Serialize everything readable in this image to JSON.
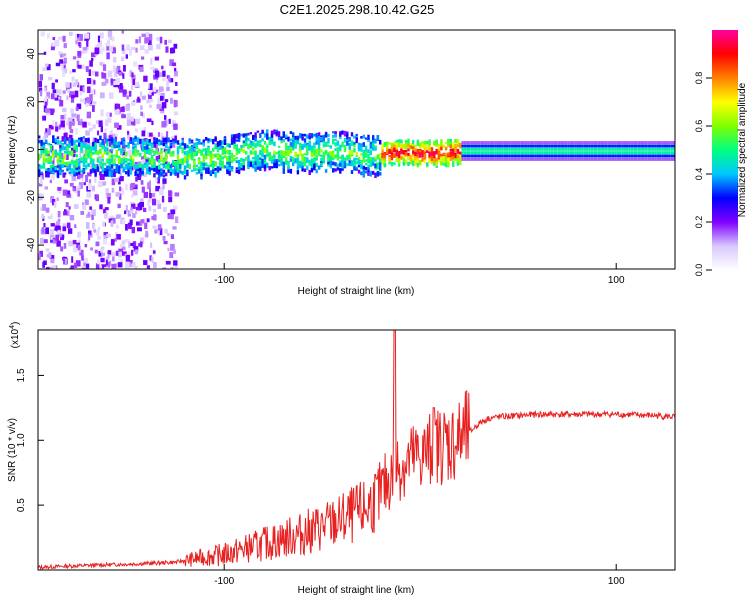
{
  "chart_data": [
    {
      "type": "heatmap",
      "title": "C2E1.2025.298.10.42.G25",
      "xlabel": "Height of straight line (km)",
      "ylabel": "Frequency (Hz)",
      "xlim": [
        -195,
        130
      ],
      "ylim": [
        -50,
        50
      ],
      "x_ticks": [
        -100,
        100
      ],
      "y_ticks": [
        -40,
        -20,
        0,
        20,
        40
      ],
      "colorbar": {
        "label": "Normalized spectral amplitude",
        "range": [
          0,
          1
        ],
        "ticks": [
          "0.0",
          "0.2",
          "0.4",
          "0.6",
          "0.8"
        ],
        "colormap": [
          "#ffffff",
          "#d8c8ff",
          "#8000ff",
          "#0000ff",
          "#00c8ff",
          "#00ff80",
          "#80ff00",
          "#ffff00",
          "#ff8000",
          "#ff0000",
          "#ff00a0"
        ]
      },
      "ridge_center_hz": [
        {
          "x": -195,
          "y": -2
        },
        {
          "x": -150,
          "y": -2
        },
        {
          "x": -120,
          "y": -3
        },
        {
          "x": -100,
          "y": -2
        },
        {
          "x": -80,
          "y": 1
        },
        {
          "x": -60,
          "y": -1
        },
        {
          "x": -40,
          "y": 0
        },
        {
          "x": -25,
          "y": -2
        },
        {
          "x": -10,
          "y": 0
        },
        {
          "x": 0,
          "y": -1
        },
        {
          "x": 20,
          "y": 0
        },
        {
          "x": 130,
          "y": 0
        }
      ]
    },
    {
      "type": "line",
      "xlabel": "Height of straight line (km)",
      "ylabel": "SNR (10 * v/v)",
      "y_multiplier": "(x10",
      "y_multiplier_exp": "4",
      "xlim": [
        -195,
        130
      ],
      "ylim": [
        0,
        1.85
      ],
      "x_ticks": [
        -100,
        100
      ],
      "y_ticks": [
        "0.5",
        "1.0",
        "1.5"
      ],
      "color": "#e82020",
      "series": [
        {
          "name": "SNR",
          "x": [
            -195,
            -180,
            -160,
            -140,
            -125,
            -110,
            -100,
            -90,
            -80,
            -70,
            -60,
            -50,
            -40,
            -30,
            -22,
            -15,
            -12,
            -8,
            -5,
            0,
            5,
            8,
            10,
            15,
            20,
            25,
            30,
            35,
            40,
            60,
            80,
            100,
            120,
            130
          ],
          "y": [
            0.02,
            0.03,
            0.04,
            0.05,
            0.06,
            0.1,
            0.12,
            0.16,
            0.2,
            0.24,
            0.28,
            0.33,
            0.38,
            0.45,
            0.55,
            0.72,
            0.8,
            0.82,
            0.85,
            0.88,
            0.92,
            0.95,
            0.97,
            0.98,
            1.0,
            1.06,
            1.13,
            1.17,
            1.18,
            1.2,
            1.2,
            1.2,
            1.19,
            1.18
          ]
        }
      ],
      "annotations": [
        {
          "x": -13,
          "y": 1.85,
          "text": ""
        },
        {
          "x": 7,
          "y": 1.25,
          "text": ""
        }
      ]
    }
  ]
}
